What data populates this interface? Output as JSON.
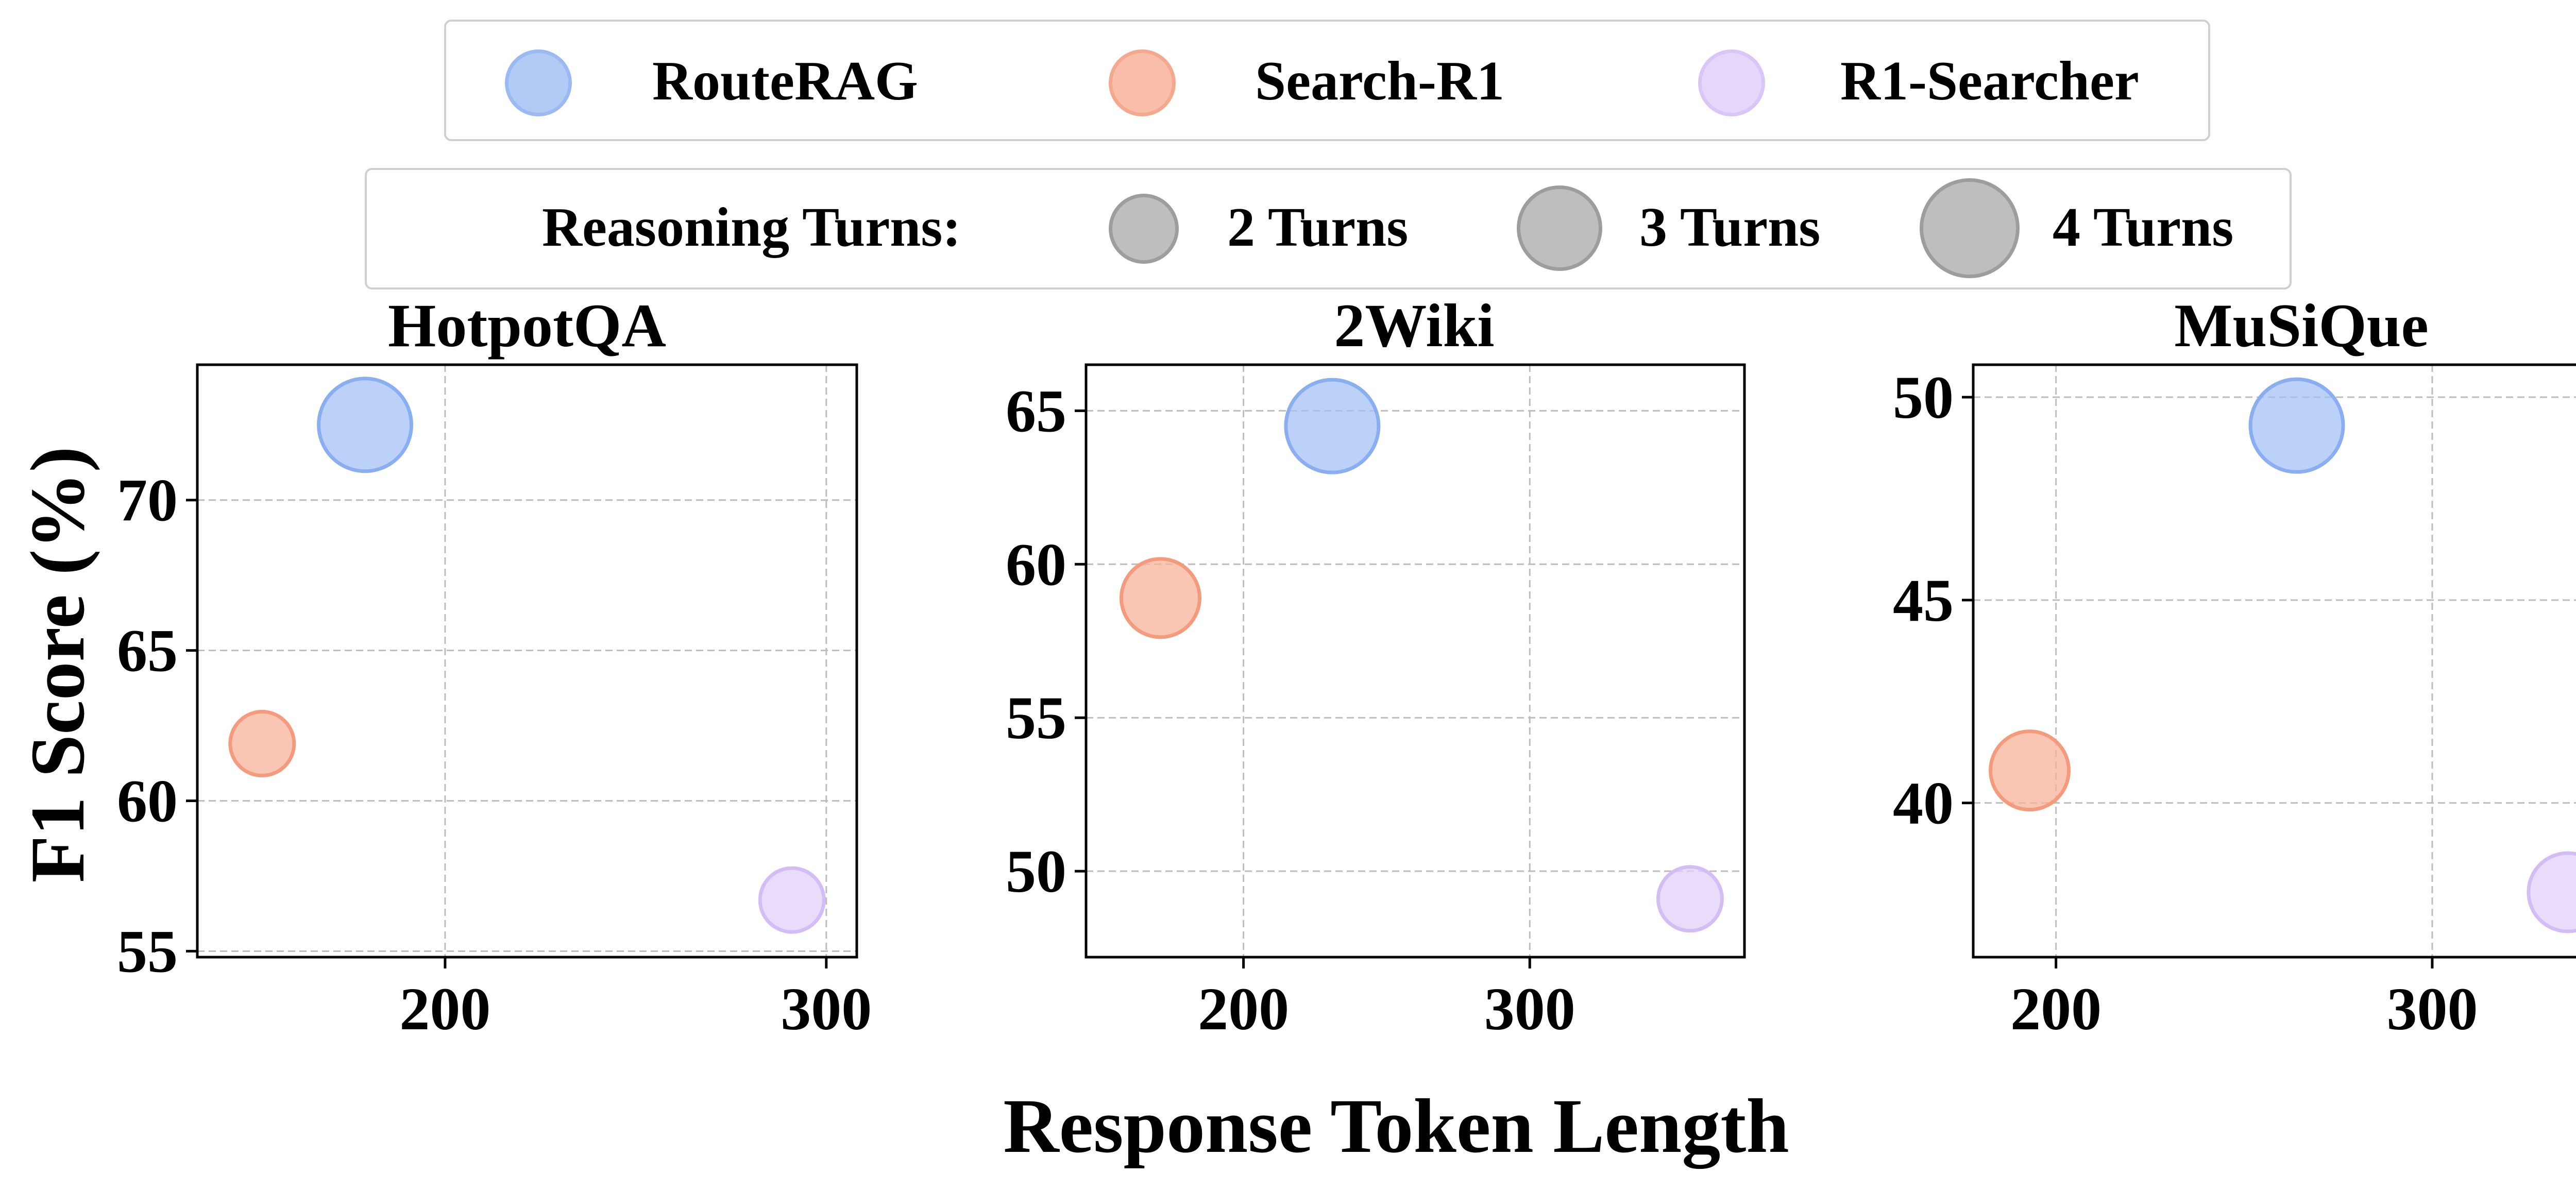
{
  "legend": {
    "methods": [
      {
        "label": "RouteRAG",
        "color": "#a4c2f4",
        "stroke": "#8aaef2"
      },
      {
        "label": "Search-R1",
        "color": "#f8b39b",
        "stroke": "#f39b7c"
      },
      {
        "label": "R1-Searcher",
        "color": "#e2d0f8",
        "stroke": "#d4bdf5"
      }
    ],
    "turns_title": "Reasoning Turns:",
    "turns": [
      {
        "label": "2 Turns",
        "value": 2
      },
      {
        "label": "3 Turns",
        "value": 3
      },
      {
        "label": "4 Turns",
        "value": 4
      }
    ],
    "turns_color": "#b3b3b3",
    "turns_stroke": "#8c8c8c"
  },
  "ylabel": "F1 Score (%)",
  "xlabel": "Response Token Length",
  "chart_data": [
    {
      "type": "scatter",
      "title": "HotpotQA",
      "xlim": [
        135,
        308
      ],
      "ylim": [
        54.8,
        74.5
      ],
      "xticks": [
        200,
        300
      ],
      "yticks": [
        55,
        60,
        65,
        70
      ],
      "grid": true,
      "points": [
        {
          "series": "RouteRAG",
          "x": 179,
          "y": 72.5,
          "turns": 4
        },
        {
          "series": "Search-R1",
          "x": 152,
          "y": 61.9,
          "turns": 2
        },
        {
          "series": "R1-Searcher",
          "x": 291,
          "y": 56.7,
          "turns": 2
        }
      ]
    },
    {
      "type": "scatter",
      "title": "2Wiki",
      "xlim": [
        145,
        375
      ],
      "ylim": [
        47.2,
        66.5
      ],
      "xticks": [
        200,
        300
      ],
      "yticks": [
        50,
        55,
        60,
        65
      ],
      "grid": true,
      "points": [
        {
          "series": "RouteRAG",
          "x": 231,
          "y": 64.5,
          "turns": 4
        },
        {
          "series": "Search-R1",
          "x": 171,
          "y": 58.9,
          "turns": 3
        },
        {
          "series": "R1-Searcher",
          "x": 356,
          "y": 49.1,
          "turns": 2
        }
      ]
    },
    {
      "type": "scatter",
      "title": "MuSiQue",
      "xlim": [
        178,
        353
      ],
      "ylim": [
        36.2,
        50.8
      ],
      "xticks": [
        200,
        300
      ],
      "yticks": [
        40,
        45,
        50
      ],
      "grid": true,
      "points": [
        {
          "series": "RouteRAG",
          "x": 264,
          "y": 49.3,
          "turns": 4
        },
        {
          "series": "Search-R1",
          "x": 193,
          "y": 40.8,
          "turns": 3
        },
        {
          "series": "R1-Searcher",
          "x": 336,
          "y": 37.8,
          "turns": 3
        }
      ]
    }
  ]
}
